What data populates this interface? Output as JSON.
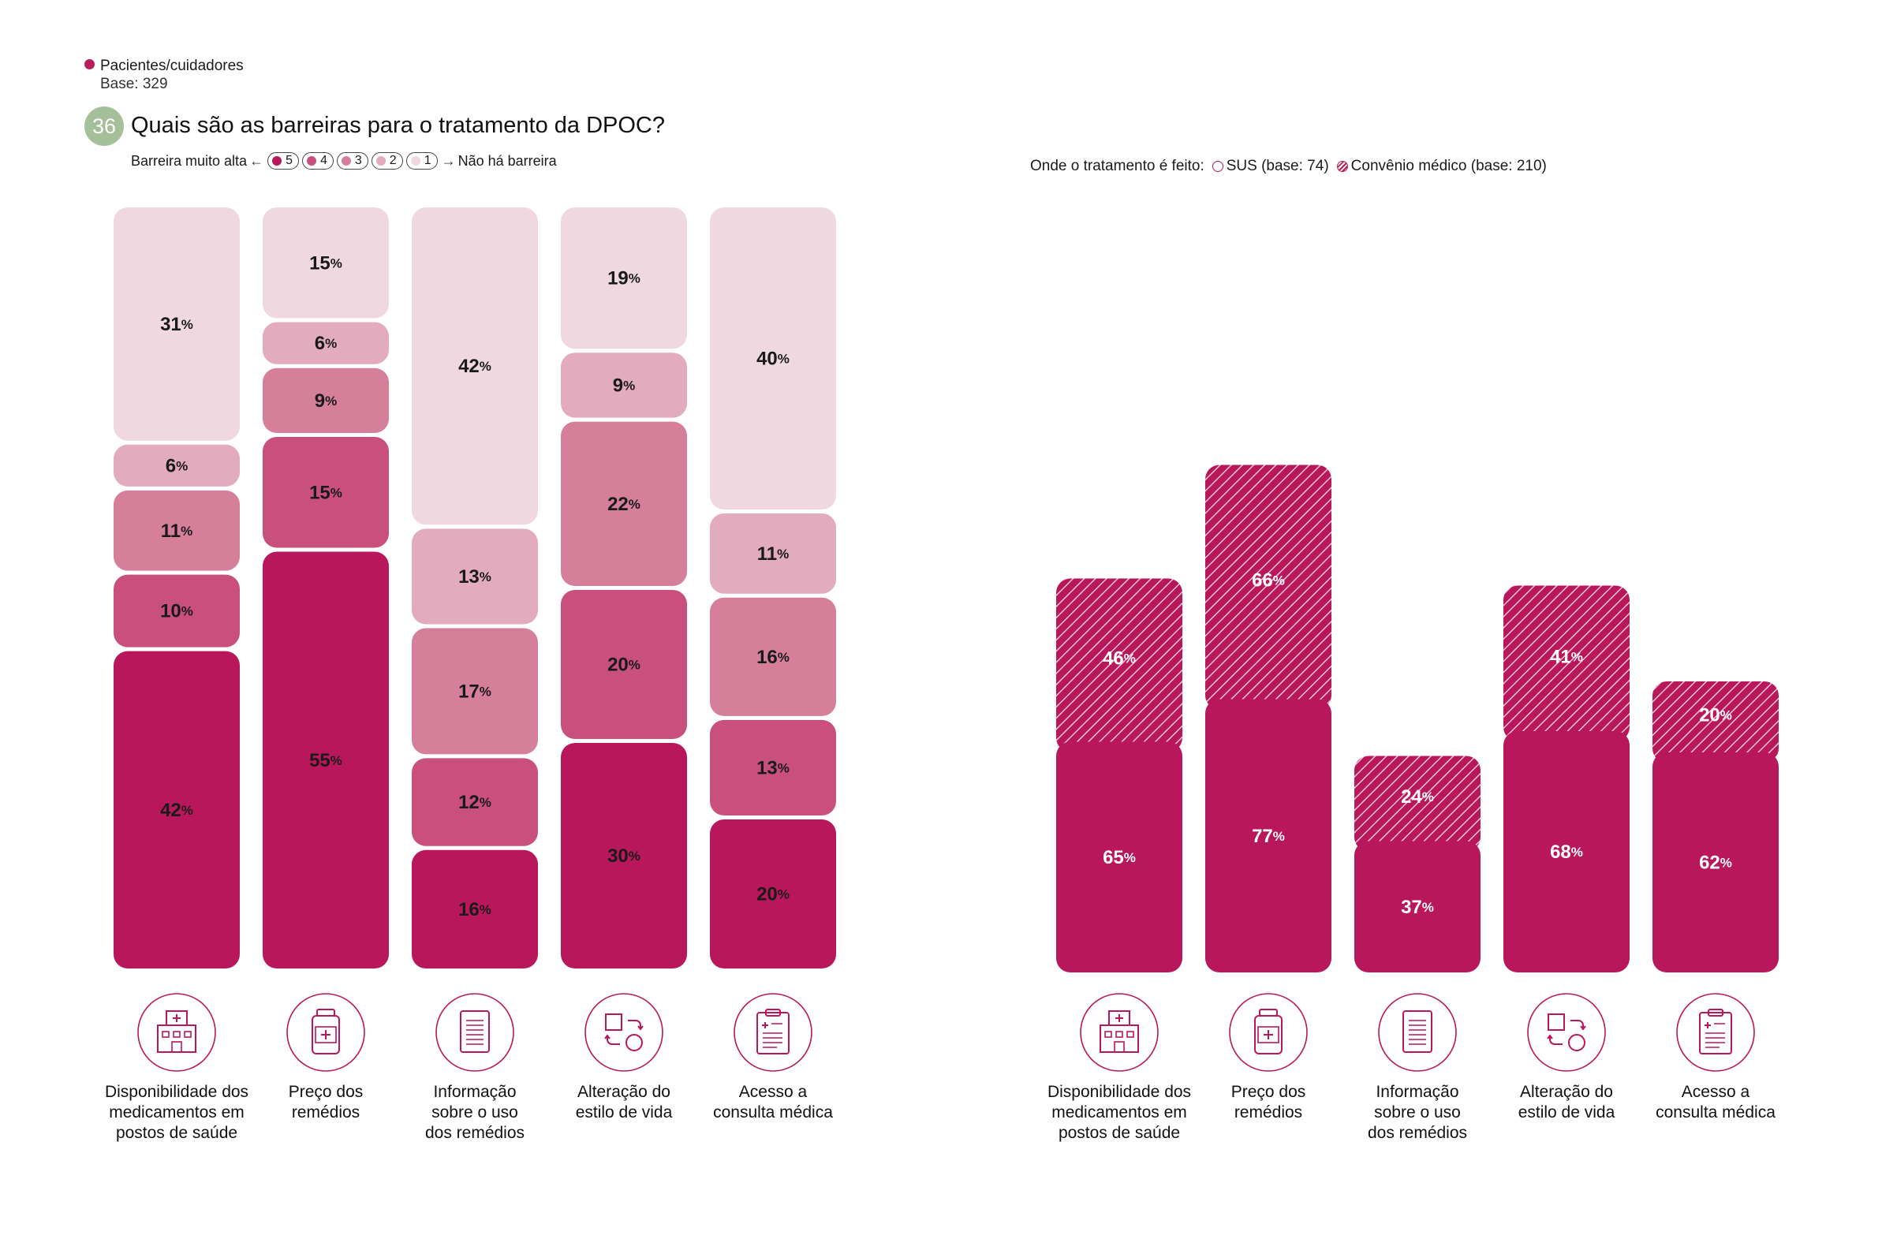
{
  "respondent": {
    "label": "Pacientes/cuidadores",
    "base": "Base: 329"
  },
  "question": {
    "number": "36",
    "title": "Quais são as barreiras para o tratamento da DPOC?"
  },
  "scale": {
    "left_label": "Barreira muito alta",
    "right_label": "Não há barreira",
    "levels": [
      "5",
      "4",
      "3",
      "2",
      "1"
    ],
    "level_colors": [
      "#b9175b",
      "#c9507c",
      "#d57f9b",
      "#e3abbe",
      "#f0d8e0"
    ]
  },
  "treatment_legend": {
    "label": "Onde o tratamento é feito:",
    "sus": "SUS (base: 74)",
    "convenio": "Convênio médico (base: 210)"
  },
  "categories": [
    {
      "label": [
        "Disponibilidade dos",
        "medicamentos em",
        "postos de saúde"
      ],
      "icon": "hospital-icon"
    },
    {
      "label": [
        "Preço dos",
        "remédios"
      ],
      "icon": "medicine-bottle-icon"
    },
    {
      "label": [
        "Informação",
        "sobre o uso",
        "dos remédios"
      ],
      "icon": "document-icon"
    },
    {
      "label": [
        "Alteração do",
        "estilo de vida"
      ],
      "icon": "change-cycle-icon"
    },
    {
      "label": [
        "Acesso a",
        "consulta médica"
      ],
      "icon": "clipboard-icon"
    }
  ],
  "chart_data": [
    {
      "type": "bar",
      "stacked": true,
      "unit": "%",
      "categories": [
        "Disponibilidade dos medicamentos em postos de saúde",
        "Preço dos remédios",
        "Informação sobre o uso dos remédios",
        "Alteração do estilo de vida",
        "Acesso a consulta médica"
      ],
      "series": [
        {
          "name": "5",
          "color": "#b9175b",
          "values": [
            42,
            55,
            16,
            30,
            20
          ]
        },
        {
          "name": "4",
          "color": "#c9507c",
          "values": [
            10,
            15,
            12,
            20,
            13
          ]
        },
        {
          "name": "3",
          "color": "#d57f9b",
          "values": [
            11,
            9,
            17,
            22,
            16
          ]
        },
        {
          "name": "2",
          "color": "#e3abbe",
          "values": [
            6,
            6,
            13,
            9,
            11
          ]
        },
        {
          "name": "1",
          "color": "#f0d8e0",
          "values": [
            31,
            15,
            42,
            19,
            40
          ]
        }
      ]
    },
    {
      "type": "bar",
      "overlaid": true,
      "unit": "%",
      "categories": [
        "Disponibilidade dos medicamentos em postos de saúde",
        "Preço dos remédios",
        "Informação sobre o uso dos remédios",
        "Alteração do estilo de vida",
        "Acesso a consulta médica"
      ],
      "series": [
        {
          "name": "SUS (base: 74)",
          "color": "#b9175b",
          "values": [
            65,
            77,
            37,
            68,
            62
          ]
        },
        {
          "name": "Convênio médico (base: 210)",
          "color": "#b9175b",
          "pattern": "hatch",
          "values": [
            46,
            66,
            24,
            41,
            20
          ]
        }
      ]
    }
  ]
}
